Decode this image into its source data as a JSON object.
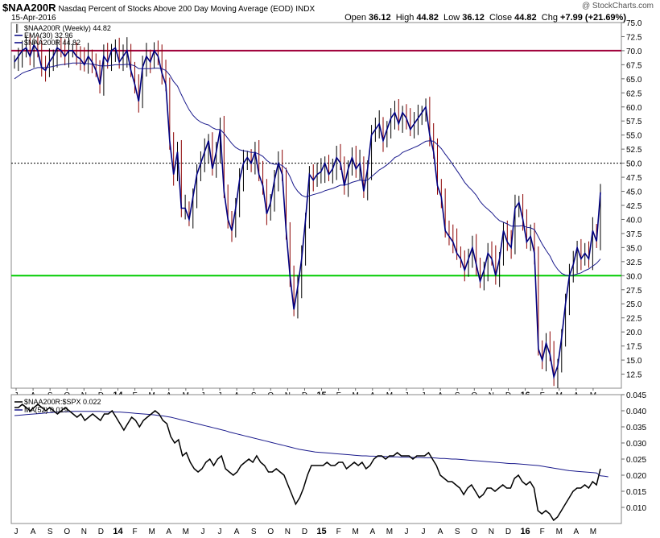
{
  "header": {
    "symbol": "$NAA200R",
    "description": "Nasdaq Percent of Stocks Above 200 Day Moving Average (EOD)",
    "exchange": "INDX",
    "date": "15-Apr-2016",
    "credit": "@ StockCharts.com",
    "open_label": "Open",
    "open": "36.12",
    "high_label": "High",
    "high": "44.82",
    "low_label": "Low",
    "low": "36.12",
    "close_label": "Close",
    "close": "44.82",
    "chg_label": "Chg",
    "chg": "+7.99 (+21.69%)"
  },
  "colors": {
    "price_line": "#000080",
    "ma_line": "#1a1a8c",
    "bar_up": "#000000",
    "bar_down": "#8b0000",
    "hline_70": "#a0003a",
    "hline_30": "#00cc00",
    "hline_50": "#000000"
  },
  "chart_data": [
    {
      "type": "line",
      "title": "$NAA200R (Weekly) 44.82",
      "legend": [
        {
          "label": "$NAA200R (Weekly) 44.82",
          "marker": "bars"
        },
        {
          "label": "EMA(30) 32.96",
          "marker": "line"
        },
        {
          "label": "$NAA200R 44.82",
          "marker": "line"
        }
      ],
      "legend_position": "top-left",
      "ylim": [
        10,
        75
      ],
      "y_ticks": [
        12.5,
        15,
        17.5,
        20,
        22.5,
        25,
        27.5,
        30,
        32.5,
        35,
        37.5,
        40,
        42.5,
        45,
        47.5,
        50,
        52.5,
        55,
        57.5,
        60,
        62.5,
        65,
        67.5,
        70,
        72.5,
        75
      ],
      "y_tick_labels": [
        "12.5",
        "15.0",
        "17.5",
        "20.0",
        "22.5",
        "25.0",
        "27.5",
        "30.0",
        "32.5",
        "35.0",
        "37.5",
        "40.0",
        "42.5",
        "45.0",
        "47.5",
        "50.0",
        "52.5",
        "55.0",
        "57.5",
        "60.0",
        "62.5",
        "65.0",
        "67.5",
        "70.0",
        "72.5",
        "75.0"
      ],
      "horizontal_lines": [
        {
          "value": 70,
          "style": "solid",
          "color": "#a0003a"
        },
        {
          "value": 50,
          "style": "dotted",
          "color": "#000000"
        },
        {
          "value": 30,
          "style": "solid",
          "color": "#00cc00"
        }
      ],
      "x_tick_labels": [
        "J",
        "A",
        "S",
        "O",
        "N",
        "D",
        "14",
        "F",
        "M",
        "A",
        "M",
        "J",
        "J",
        "A",
        "S",
        "O",
        "N",
        "D",
        "15",
        "F",
        "M",
        "A",
        "M",
        "J",
        "J",
        "A",
        "S",
        "O",
        "N",
        "D",
        "16",
        "F",
        "M",
        "A",
        "M"
      ],
      "x_year_labels": [
        "14",
        "15",
        "16"
      ],
      "series": [
        {
          "name": "$NAA200R",
          "kind": "price_close",
          "values": [
            68,
            69,
            70,
            70.5,
            69,
            71,
            70,
            67,
            66.5,
            68,
            69,
            70.5,
            70,
            69,
            70,
            70,
            69,
            68.5,
            67.5,
            69,
            68,
            66.5,
            64,
            69,
            68,
            70,
            70.5,
            68,
            69,
            70,
            66.5,
            64,
            61,
            67,
            69,
            68,
            70,
            69,
            66,
            64,
            54,
            48,
            52,
            42,
            42,
            40,
            44,
            48,
            50,
            52,
            54,
            49,
            52,
            56,
            45,
            40,
            38,
            42,
            47,
            50,
            51,
            50,
            52,
            48,
            46,
            41,
            43,
            47,
            50,
            48,
            38,
            30,
            24,
            28,
            33,
            40,
            48,
            47,
            48,
            48.5,
            50,
            48,
            49,
            51,
            50,
            46,
            49,
            51,
            49,
            50,
            45,
            49,
            55,
            56,
            57,
            54,
            56,
            58,
            59,
            57,
            59,
            58,
            56,
            57,
            58,
            59,
            60,
            55,
            52,
            46,
            44,
            38,
            37,
            36,
            34,
            33,
            31,
            33,
            35,
            32,
            29,
            31,
            34,
            33,
            30,
            33,
            38,
            36,
            35,
            42,
            43,
            40,
            36,
            37,
            34,
            17,
            15,
            18,
            16,
            12,
            14,
            19,
            25,
            30,
            32,
            35,
            33,
            34,
            33,
            38,
            36.12,
            44.82
          ]
        },
        {
          "name": "EMA(30)",
          "kind": "moving_average",
          "values": [
            65,
            65.5,
            66,
            66.3,
            66.5,
            66.8,
            67,
            67,
            67,
            67.1,
            67.2,
            67.4,
            67.5,
            67.6,
            67.7,
            67.8,
            67.8,
            67.8,
            67.7,
            67.7,
            67.6,
            67.5,
            67.3,
            67.3,
            67.3,
            67.4,
            67.5,
            67.5,
            67.5,
            67.6,
            67.5,
            67.3,
            66.8,
            66.8,
            66.8,
            66.8,
            66.9,
            66.9,
            66.8,
            66.5,
            65.7,
            64.5,
            63.7,
            62.2,
            60.8,
            59.5,
            58.5,
            57.8,
            57.3,
            57,
            56.8,
            56.3,
            56,
            56,
            55.3,
            54.4,
            53.5,
            52.8,
            52.4,
            52.2,
            52.1,
            51.9,
            51.9,
            51.6,
            51.2,
            50.5,
            50,
            49.8,
            49.8,
            49.6,
            48.9,
            47.6,
            46,
            45,
            44.3,
            44,
            44.2,
            44.4,
            44.6,
            44.8,
            45.1,
            45.3,
            45.5,
            45.8,
            46.1,
            46.1,
            46.3,
            46.6,
            46.8,
            47,
            46.9,
            47,
            47.6,
            48.2,
            48.8,
            49.2,
            49.7,
            50.3,
            51,
            51.3,
            51.9,
            52.2,
            52.5,
            52.8,
            53.1,
            53.5,
            53.9,
            54,
            53.9,
            53.3,
            52.6,
            51.6,
            50.7,
            49.7,
            48.7,
            47.7,
            46.6,
            45.8,
            45.1,
            44.3,
            43.2,
            42.4,
            41.8,
            41.2,
            40.4,
            39.8,
            39.5,
            39.2,
            38.8,
            38.8,
            38.8,
            38.9,
            38.6,
            38.5,
            38.2,
            36.9,
            35.6,
            34.5,
            33.5,
            32.1,
            31.1,
            30.4,
            30.1,
            30,
            30.1,
            30.3,
            30.5,
            30.9,
            31.2,
            31.7,
            32.2,
            32.96
          ]
        }
      ]
    },
    {
      "type": "line",
      "title": "$NAA200R:$SPX 0.022",
      "legend": [
        {
          "label": "$NAA200R:$SPX 0.022",
          "marker": "line"
        },
        {
          "label": "MA(52) 0.019",
          "marker": "line"
        }
      ],
      "legend_position": "top-left",
      "ylim": [
        0.005,
        0.045
      ],
      "y_ticks": [
        0.01,
        0.015,
        0.02,
        0.025,
        0.03,
        0.035,
        0.04,
        0.045
      ],
      "y_tick_labels": [
        "0.010",
        "0.015",
        "0.020",
        "0.025",
        "0.030",
        "0.035",
        "0.040",
        "0.045"
      ],
      "series": [
        {
          "name": "$NAA200R:$SPX",
          "kind": "ratio",
          "values": [
            0.041,
            0.041,
            0.042,
            0.041,
            0.04,
            0.041,
            0.042,
            0.041,
            0.04,
            0.041,
            0.04,
            0.039,
            0.04,
            0.041,
            0.04,
            0.039,
            0.038,
            0.039,
            0.037,
            0.038,
            0.039,
            0.038,
            0.037,
            0.039,
            0.039,
            0.04,
            0.038,
            0.036,
            0.034,
            0.036,
            0.038,
            0.037,
            0.035,
            0.037,
            0.038,
            0.039,
            0.04,
            0.039,
            0.037,
            0.036,
            0.032,
            0.03,
            0.031,
            0.026,
            0.027,
            0.024,
            0.022,
            0.021,
            0.022,
            0.024,
            0.025,
            0.023,
            0.025,
            0.026,
            0.022,
            0.021,
            0.02,
            0.021,
            0.023,
            0.024,
            0.025,
            0.024,
            0.026,
            0.024,
            0.023,
            0.021,
            0.021,
            0.022,
            0.021,
            0.02,
            0.017,
            0.014,
            0.011,
            0.013,
            0.016,
            0.02,
            0.023,
            0.023,
            0.023,
            0.023,
            0.024,
            0.023,
            0.023,
            0.024,
            0.024,
            0.022,
            0.023,
            0.024,
            0.023,
            0.024,
            0.022,
            0.023,
            0.025,
            0.026,
            0.026,
            0.025,
            0.026,
            0.026,
            0.027,
            0.026,
            0.026,
            0.026,
            0.025,
            0.026,
            0.026,
            0.026,
            0.027,
            0.025,
            0.023,
            0.02,
            0.019,
            0.018,
            0.018,
            0.017,
            0.016,
            0.014,
            0.016,
            0.017,
            0.015,
            0.013,
            0.014,
            0.016,
            0.016,
            0.015,
            0.016,
            0.017,
            0.016,
            0.016,
            0.019,
            0.02,
            0.018,
            0.017,
            0.018,
            0.016,
            0.009,
            0.008,
            0.009,
            0.008,
            0.006,
            0.007,
            0.009,
            0.011,
            0.013,
            0.015,
            0.016,
            0.016,
            0.017,
            0.016,
            0.018,
            0.017,
            0.022
          ]
        },
        {
          "name": "MA(52)",
          "kind": "moving_average",
          "values": [
            0.0385,
            0.0386,
            0.0387,
            0.0388,
            0.0389,
            0.039,
            0.0391,
            0.0392,
            0.0393,
            0.0394,
            0.0395,
            0.0396,
            0.0396,
            0.0397,
            0.0397,
            0.0398,
            0.0398,
            0.0398,
            0.0398,
            0.0398,
            0.0398,
            0.0398,
            0.0398,
            0.0397,
            0.0397,
            0.0397,
            0.0396,
            0.0396,
            0.0395,
            0.0394,
            0.0393,
            0.0392,
            0.0391,
            0.039,
            0.0389,
            0.0388,
            0.0387,
            0.0385,
            0.0384,
            0.0382,
            0.038,
            0.0377,
            0.0374,
            0.0371,
            0.0368,
            0.0365,
            0.0362,
            0.0359,
            0.0356,
            0.0353,
            0.035,
            0.0347,
            0.0344,
            0.0341,
            0.0338,
            0.0334,
            0.0331,
            0.0328,
            0.0325,
            0.0322,
            0.0319,
            0.0316,
            0.0313,
            0.031,
            0.0307,
            0.0304,
            0.0301,
            0.0298,
            0.0295,
            0.0292,
            0.0289,
            0.0286,
            0.0283,
            0.028,
            0.0278,
            0.0276,
            0.0274,
            0.0272,
            0.0271,
            0.027,
            0.0269,
            0.0268,
            0.0267,
            0.0266,
            0.0265,
            0.0264,
            0.0263,
            0.0262,
            0.0261,
            0.026,
            0.026,
            0.0259,
            0.0259,
            0.0258,
            0.0258,
            0.0258,
            0.0257,
            0.0257,
            0.0257,
            0.0256,
            0.0256,
            0.0256,
            0.0255,
            0.0255,
            0.0255,
            0.0254,
            0.0254,
            0.0254,
            0.0253,
            0.0252,
            0.0252,
            0.0251,
            0.025,
            0.025,
            0.0249,
            0.0248,
            0.0247,
            0.0246,
            0.0245,
            0.0244,
            0.0243,
            0.0242,
            0.0241,
            0.024,
            0.0239,
            0.0238,
            0.0237,
            0.0236,
            0.0236,
            0.0235,
            0.0234,
            0.0233,
            0.0232,
            0.0231,
            0.023,
            0.0228,
            0.0226,
            0.0224,
            0.0222,
            0.022,
            0.0218,
            0.0216,
            0.0214,
            0.0213,
            0.0212,
            0.0211,
            0.021,
            0.0209,
            0.0208,
            0.0207,
            0.0198,
            0.0197,
            0.0195
          ]
        }
      ]
    }
  ]
}
